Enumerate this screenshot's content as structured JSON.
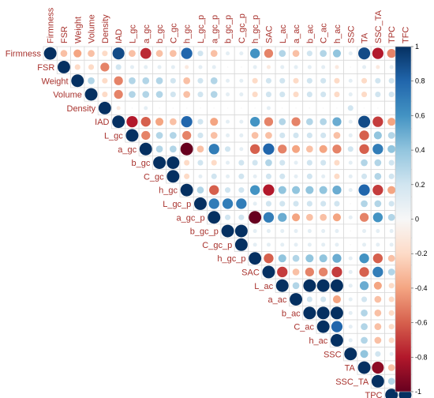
{
  "chart_data": {
    "type": "heatmap",
    "style": "corrplot-circle-upper",
    "variables": [
      "Firmness",
      "FSR",
      "Weight",
      "Volume",
      "Density",
      "IAD",
      "L_gc",
      "a_gc",
      "b_gc",
      "C_gc",
      "h_gc",
      "L_gc_p",
      "a_gc_p",
      "b_gc_p",
      "C_gc_p",
      "h_gc_p",
      "SAC",
      "L_ac",
      "a_ac",
      "b_ac",
      "C_ac",
      "h_ac",
      "SSC",
      "TA",
      "SSC_TA",
      "TPC",
      "TFC"
    ],
    "rows": [
      {
        "name": "Firmness",
        "values": [
          1,
          -0.3,
          -0.4,
          -0.3,
          -0.2,
          0.9,
          -0.3,
          -0.75,
          -0.3,
          -0.3,
          0.8,
          0.2,
          -0.3,
          0.1,
          0.1,
          0.6,
          -0.5,
          0.3,
          -0.3,
          0.2,
          0.3,
          0.4,
          0.1,
          0.9,
          -0.8,
          -0.5,
          -0.4
        ]
      },
      {
        "name": "FSR",
        "values": [
          null,
          1,
          -0.2,
          -0.2,
          -0.5,
          0.2,
          0.1,
          0.1,
          0.1,
          0.1,
          -0.1,
          0.1,
          0.1,
          0,
          0,
          0.1,
          -0.1,
          0.1,
          0.1,
          0.1,
          0.1,
          -0.1,
          0,
          0.1,
          -0.1,
          0.1,
          0.1
        ]
      },
      {
        "name": "Weight",
        "values": [
          null,
          null,
          1,
          0.3,
          -0.2,
          -0.5,
          0.3,
          0.3,
          0.3,
          0.2,
          -0.3,
          0.2,
          0.3,
          0.1,
          0.1,
          -0.2,
          0.2,
          0.2,
          -0.2,
          0.2,
          0.2,
          -0.2,
          0.1,
          -0.2,
          0.2,
          0.2,
          0.2
        ]
      },
      {
        "name": "Volume",
        "values": [
          null,
          null,
          null,
          1,
          -0.2,
          -0.5,
          0.3,
          0.3,
          0.3,
          0.2,
          -0.3,
          0.2,
          0.3,
          0.1,
          0.1,
          -0.2,
          0.2,
          0.2,
          -0.2,
          0.2,
          0.2,
          -0.2,
          0.1,
          -0.2,
          0.2,
          0.2,
          0.2
        ]
      },
      {
        "name": "Density",
        "values": [
          null,
          null,
          null,
          null,
          1,
          -0.1,
          0,
          0.1,
          0,
          0,
          0,
          0,
          0,
          0,
          0,
          0,
          0.1,
          0,
          0,
          0,
          0,
          0,
          0.2,
          0,
          0,
          0,
          0
        ]
      },
      {
        "name": "IAD",
        "values": [
          null,
          null,
          null,
          null,
          null,
          1,
          -0.8,
          -0.6,
          -0.4,
          -0.3,
          0.8,
          0.2,
          -0.4,
          0.1,
          0.1,
          0.6,
          -0.5,
          0.3,
          -0.5,
          0.3,
          0.3,
          0.5,
          0.1,
          0.9,
          -0.7,
          -0.4,
          -0.3
        ]
      },
      {
        "name": "L_gc",
        "values": [
          null,
          null,
          null,
          null,
          null,
          null,
          1,
          -0.5,
          0.3,
          0.3,
          -0.5,
          0.2,
          -0.3,
          0.1,
          0.1,
          -0.3,
          -0.3,
          0.2,
          0.2,
          0.2,
          0.2,
          -0.3,
          0.1,
          -0.6,
          0.4,
          0.3,
          0.2
        ]
      },
      {
        "name": "a_gc",
        "values": [
          null,
          null,
          null,
          null,
          null,
          null,
          null,
          1,
          0.3,
          0.3,
          -1,
          -0.3,
          0.7,
          0.2,
          0.1,
          -0.6,
          0.8,
          -0.5,
          -0.4,
          -0.3,
          -0.4,
          -0.5,
          0.2,
          -0.6,
          0.7,
          0.4,
          0.3
        ]
      },
      {
        "name": "b_gc",
        "values": [
          null,
          null,
          null,
          null,
          null,
          null,
          null,
          null,
          1,
          1,
          -0.2,
          0.2,
          -0.2,
          0.1,
          0.2,
          0.2,
          0.3,
          0.2,
          0.1,
          0.2,
          0.2,
          -0.2,
          0.1,
          0.3,
          0.3,
          0.2,
          0.1
        ]
      },
      {
        "name": "C_gc",
        "values": [
          null,
          null,
          null,
          null,
          null,
          null,
          null,
          null,
          null,
          1,
          -0.2,
          0.1,
          0.2,
          0.1,
          0.2,
          0.1,
          0.2,
          0.2,
          0.1,
          0.2,
          0.1,
          -0.2,
          0.1,
          0.2,
          0.3,
          0.2,
          0.1
        ]
      },
      {
        "name": "h_gc",
        "values": [
          null,
          null,
          null,
          null,
          null,
          null,
          null,
          null,
          null,
          null,
          1,
          0.3,
          -0.6,
          0.2,
          0.2,
          0.6,
          -0.8,
          0.4,
          0.4,
          0.4,
          0.4,
          0.5,
          0.1,
          0.8,
          -0.7,
          -0.4,
          -0.3
        ]
      },
      {
        "name": "L_gc_p",
        "values": [
          null,
          null,
          null,
          null,
          null,
          null,
          null,
          null,
          null,
          null,
          null,
          1,
          0.7,
          0.7,
          0.7,
          0.1,
          0.2,
          0.2,
          0.2,
          0.2,
          0.2,
          0.2,
          0,
          0.3,
          0.3,
          0.2,
          0.1
        ]
      },
      {
        "name": "a_gc_p",
        "values": [
          null,
          null,
          null,
          null,
          null,
          null,
          null,
          null,
          null,
          null,
          null,
          null,
          1,
          0.2,
          0.2,
          -1,
          0.7,
          0.5,
          -0.4,
          -0.3,
          -0.3,
          -0.4,
          0.1,
          -0.5,
          0.6,
          0.3,
          0.2
        ]
      },
      {
        "name": "b_gc_p",
        "values": [
          null,
          null,
          null,
          null,
          null,
          null,
          null,
          null,
          null,
          null,
          null,
          null,
          null,
          1,
          1,
          0.1,
          0.1,
          0.1,
          0.1,
          0.1,
          0.1,
          0.1,
          0,
          0.1,
          0.1,
          0.1,
          0.1
        ]
      },
      {
        "name": "C_gc_p",
        "values": [
          null,
          null,
          null,
          null,
          null,
          null,
          null,
          null,
          null,
          null,
          null,
          null,
          null,
          null,
          1,
          0.1,
          0.1,
          0.1,
          0.1,
          0.1,
          0.1,
          0.1,
          0,
          0.1,
          0.1,
          0.1,
          0.1
        ]
      },
      {
        "name": "h_gc_p",
        "values": [
          null,
          null,
          null,
          null,
          null,
          null,
          null,
          null,
          null,
          null,
          null,
          null,
          null,
          null,
          null,
          1,
          -0.6,
          0.4,
          0.3,
          0.4,
          0.4,
          0.5,
          0.1,
          0.6,
          -0.6,
          -0.3,
          -0.2
        ]
      },
      {
        "name": "SAC",
        "values": [
          null,
          null,
          null,
          null,
          null,
          null,
          null,
          null,
          null,
          null,
          null,
          null,
          null,
          null,
          null,
          null,
          1,
          -0.7,
          -0.3,
          -0.5,
          -0.5,
          -0.7,
          0.1,
          -0.6,
          0.7,
          0.3,
          0.2
        ]
      },
      {
        "name": "L_ac",
        "values": [
          null,
          null,
          null,
          null,
          null,
          null,
          null,
          null,
          null,
          null,
          null,
          null,
          null,
          null,
          null,
          null,
          null,
          1,
          0.3,
          1,
          1,
          1,
          0.1,
          0.5,
          -0.4,
          -0.2,
          -0.2
        ]
      },
      {
        "name": "a_ac",
        "values": [
          null,
          null,
          null,
          null,
          null,
          null,
          null,
          null,
          null,
          null,
          null,
          null,
          null,
          null,
          null,
          null,
          null,
          null,
          1,
          0.2,
          0.2,
          -0.4,
          0.1,
          0.2,
          -0.3,
          -0.2,
          -0.2
        ]
      },
      {
        "name": "b_ac",
        "values": [
          null,
          null,
          null,
          null,
          null,
          null,
          null,
          null,
          null,
          null,
          null,
          null,
          null,
          null,
          null,
          null,
          null,
          null,
          null,
          1,
          1,
          1,
          0.1,
          0.3,
          -0.3,
          -0.2,
          -0.2
        ]
      },
      {
        "name": "C_ac",
        "values": [
          null,
          null,
          null,
          null,
          null,
          null,
          null,
          null,
          null,
          null,
          null,
          null,
          null,
          null,
          null,
          null,
          null,
          null,
          null,
          null,
          1,
          0.8,
          0.1,
          0.3,
          -0.3,
          -0.2,
          -0.2
        ]
      },
      {
        "name": "h_ac",
        "values": [
          null,
          null,
          null,
          null,
          null,
          null,
          null,
          null,
          null,
          null,
          null,
          null,
          null,
          null,
          null,
          null,
          null,
          null,
          null,
          null,
          null,
          1,
          0.1,
          0.3,
          -0.3,
          -0.2,
          -0.2
        ]
      },
      {
        "name": "SSC",
        "values": [
          null,
          null,
          null,
          null,
          null,
          null,
          null,
          null,
          null,
          null,
          null,
          null,
          null,
          null,
          null,
          null,
          null,
          null,
          null,
          null,
          null,
          null,
          1,
          0.4,
          0.2,
          0.1,
          0.1
        ]
      },
      {
        "name": "TA",
        "values": [
          null,
          null,
          null,
          null,
          null,
          null,
          null,
          null,
          null,
          null,
          null,
          null,
          null,
          null,
          null,
          null,
          null,
          null,
          null,
          null,
          null,
          null,
          null,
          1,
          -0.9,
          -0.3,
          -0.2
        ]
      },
      {
        "name": "SSC_TA",
        "values": [
          null,
          null,
          null,
          null,
          null,
          null,
          null,
          null,
          null,
          null,
          null,
          null,
          null,
          null,
          null,
          null,
          null,
          null,
          null,
          null,
          null,
          null,
          null,
          null,
          1,
          0.3,
          0.2
        ]
      },
      {
        "name": "TPC",
        "values": [
          null,
          null,
          null,
          null,
          null,
          null,
          null,
          null,
          null,
          null,
          null,
          null,
          null,
          null,
          null,
          null,
          null,
          null,
          null,
          null,
          null,
          null,
          null,
          null,
          null,
          1,
          1
        ]
      },
      {
        "name": "TFC",
        "values": [
          null,
          null,
          null,
          null,
          null,
          null,
          null,
          null,
          null,
          null,
          null,
          null,
          null,
          null,
          null,
          null,
          null,
          null,
          null,
          null,
          null,
          null,
          null,
          null,
          null,
          null,
          1
        ]
      }
    ],
    "colorbar": {
      "range": [
        -1,
        1
      ],
      "ticks": [
        "1",
        "0.8",
        "0.6",
        "0.4",
        "0.2",
        "0",
        "-0.2",
        "-0.4",
        "-0.6",
        "-0.8",
        "-1"
      ]
    },
    "colors": {
      "negative": "#67001f",
      "neutral": "#f7f7f7",
      "positive": "#053061",
      "label": "#a8322d"
    }
  }
}
